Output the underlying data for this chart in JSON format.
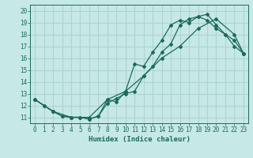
{
  "xlabel": "Humidex (Indice chaleur)",
  "xlim": [
    -0.5,
    23.5
  ],
  "ylim": [
    10.5,
    20.5
  ],
  "xticks": [
    0,
    1,
    2,
    3,
    4,
    5,
    6,
    7,
    8,
    9,
    10,
    11,
    12,
    13,
    14,
    15,
    16,
    17,
    18,
    19,
    20,
    21,
    22,
    23
  ],
  "yticks": [
    11,
    12,
    13,
    14,
    15,
    16,
    17,
    18,
    19,
    20
  ],
  "bg_color": "#c6e8e6",
  "grid_color": "#aed4d2",
  "line_color": "#1a6b5a",
  "line1_x": [
    0,
    1,
    2,
    3,
    4,
    5,
    6,
    7,
    8,
    9,
    10,
    11,
    12,
    13,
    14,
    15,
    16,
    17,
    18,
    19,
    20,
    21,
    22,
    23
  ],
  "line1_y": [
    12.5,
    12.0,
    11.5,
    11.1,
    11.0,
    11.0,
    10.85,
    11.1,
    12.5,
    12.3,
    13.2,
    15.5,
    15.3,
    16.5,
    17.5,
    18.8,
    19.2,
    19.0,
    19.5,
    19.7,
    18.8,
    18.0,
    17.0,
    16.4
  ],
  "line2_x": [
    0,
    1,
    2,
    3,
    4,
    5,
    6,
    7,
    8,
    9,
    10,
    11,
    12,
    13,
    14,
    15,
    16,
    17,
    18,
    19,
    20,
    21,
    22,
    23
  ],
  "line2_y": [
    12.5,
    12.0,
    11.5,
    11.1,
    11.0,
    11.0,
    10.85,
    11.1,
    12.2,
    12.6,
    13.0,
    13.2,
    14.5,
    15.3,
    16.5,
    17.2,
    18.8,
    19.3,
    19.5,
    19.2,
    18.5,
    18.0,
    17.5,
    16.4
  ],
  "line3_x": [
    0,
    2,
    4,
    6,
    8,
    10,
    12,
    14,
    16,
    18,
    20,
    22,
    23
  ],
  "line3_y": [
    12.5,
    11.5,
    11.0,
    11.0,
    12.5,
    13.2,
    14.5,
    16.0,
    17.0,
    18.5,
    19.3,
    18.0,
    16.4
  ]
}
